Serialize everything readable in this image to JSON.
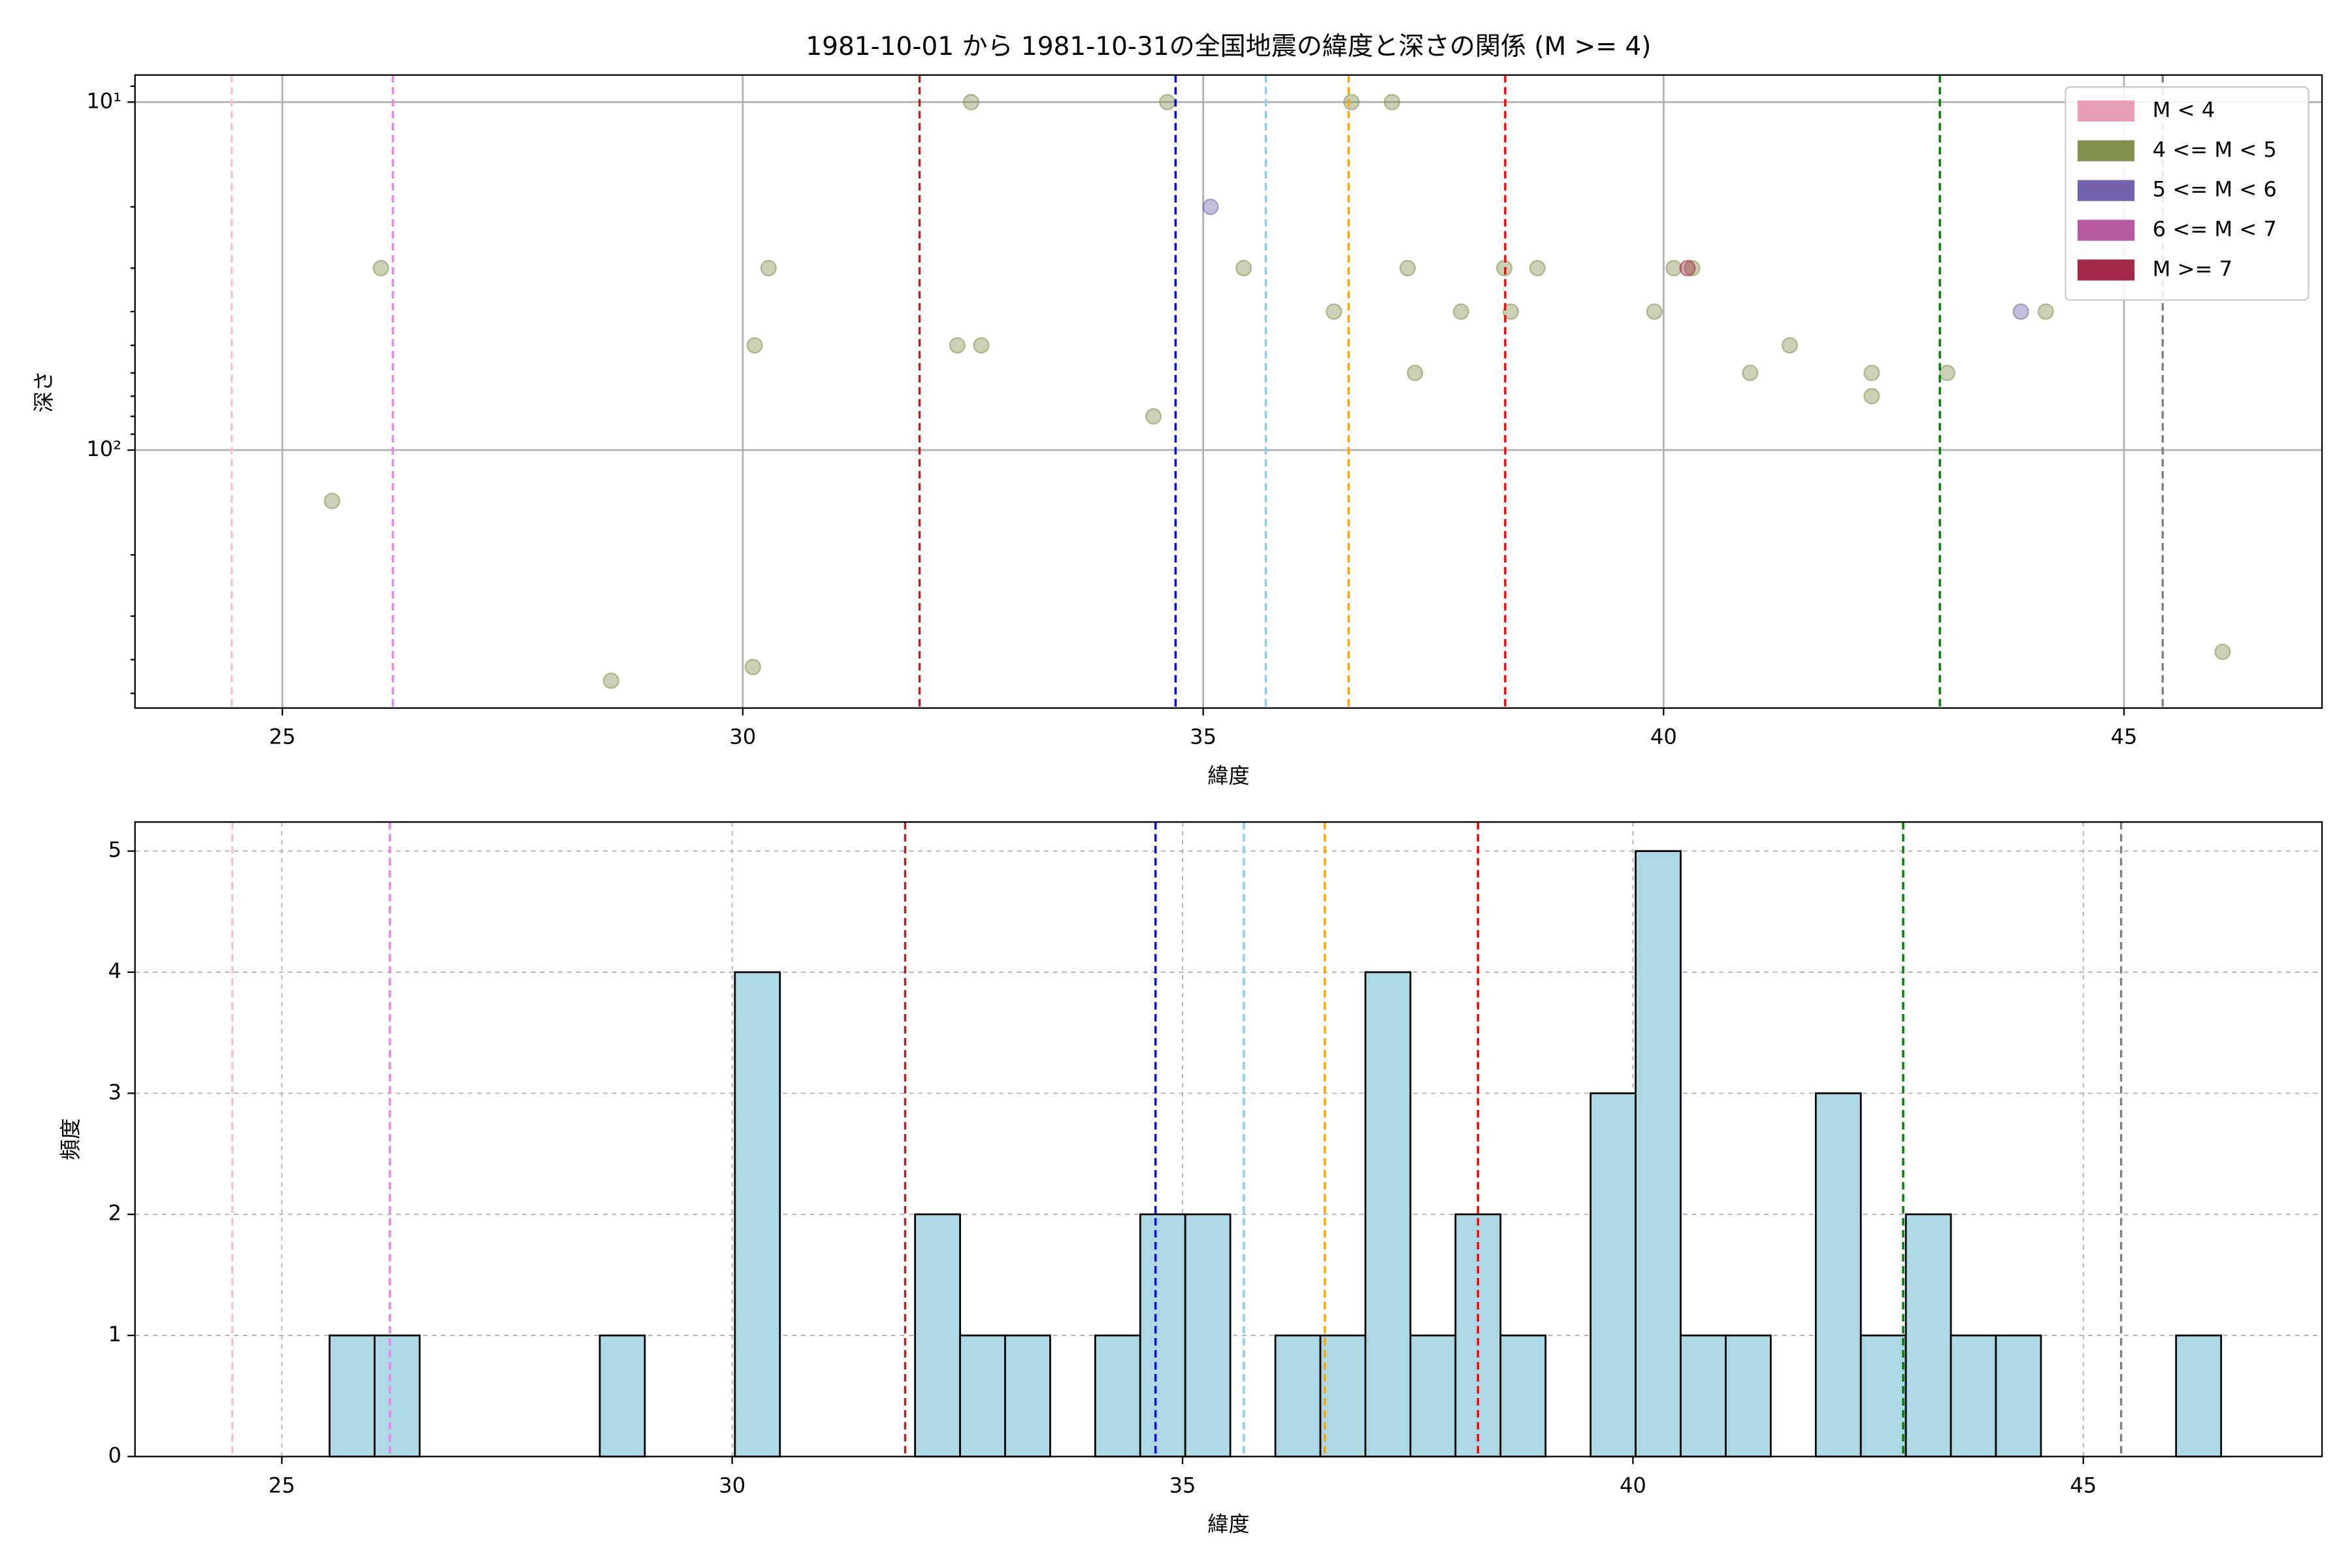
{
  "chart_data": [
    {
      "type": "scatter",
      "title": "1981-10-01 から 1981-10-31の全国地震の緯度と深さの関係 (M >= 4)",
      "xlabel": "緯度",
      "ylabel": "深さ",
      "xlim": [
        23.4,
        47.15
      ],
      "xticks": [
        25,
        30,
        35,
        40,
        45
      ],
      "yscale": "log",
      "ylim": [
        551,
        8.36
      ],
      "yticks": [
        {
          "value": 10,
          "label": "10¹"
        },
        {
          "value": 100,
          "label": "10²"
        }
      ],
      "yminorticks": [
        9,
        20,
        30,
        40,
        50,
        60,
        70,
        80,
        90,
        200,
        300,
        400,
        500
      ],
      "grid": true,
      "legend": "upper right",
      "series": [
        {
          "name": "M < 4",
          "color": "#e899b5",
          "x": [],
          "values": []
        },
        {
          "name": "4 <= M < 5",
          "color": "#7a8c45",
          "x": [
            25.54,
            26.07,
            28.57,
            30.11,
            30.13,
            30.28,
            32.33,
            32.48,
            32.59,
            34.46,
            34.61,
            35.44,
            36.42,
            36.61,
            37.05,
            37.22,
            37.3,
            37.8,
            38.27,
            38.34,
            38.63,
            39.9,
            40.11,
            40.31,
            40.94,
            41.37,
            42.26,
            42.26,
            43.08,
            44.15,
            46.07
          ],
          "values": [
            140,
            30,
            460,
            420,
            50,
            30,
            50,
            10,
            50,
            80,
            10,
            30,
            40,
            10,
            10,
            30,
            60,
            40,
            30,
            40,
            30,
            40,
            30,
            30,
            60,
            50,
            60,
            70,
            60,
            40,
            380
          ]
        },
        {
          "name": "5 <= M < 6",
          "color": "#6e5aa8",
          "x": [
            35.08,
            43.88
          ],
          "values": [
            20,
            40
          ]
        },
        {
          "name": "6 <= M < 7",
          "color": "#b34f9e",
          "x": [],
          "values": []
        },
        {
          "name": "M >= 7",
          "color": "#9e1b3c",
          "x": [
            40.26
          ],
          "values": [
            30
          ]
        }
      ],
      "vlines": [
        {
          "value": 24.45,
          "color": "pink"
        },
        {
          "value": 26.2,
          "color": "violet"
        },
        {
          "value": 31.92,
          "color": "firebrick"
        },
        {
          "value": 34.7,
          "color": "blue"
        },
        {
          "value": 35.68,
          "color": "skyblue"
        },
        {
          "value": 36.58,
          "color": "orange"
        },
        {
          "value": 38.28,
          "color": "red"
        },
        {
          "value": 43.0,
          "color": "green"
        },
        {
          "value": 45.42,
          "color": "gray"
        }
      ]
    },
    {
      "type": "histogram",
      "xlabel": "緯度",
      "ylabel": "頻度",
      "color": "lightblue",
      "edgecolor": "#000000",
      "xlim": [
        23.37,
        47.65
      ],
      "xticks": [
        25,
        30,
        35,
        40,
        45
      ],
      "ylim": [
        0,
        5.24
      ],
      "yticks": [
        0,
        1,
        2,
        3,
        4,
        5
      ],
      "grid": true,
      "bins": [
        25.53,
        26.03,
        26.53,
        27.03,
        27.53,
        28.03,
        28.53,
        29.03,
        29.53,
        30.03,
        30.53,
        31.03,
        31.53,
        32.03,
        32.53,
        33.03,
        33.53,
        34.03,
        34.53,
        35.03,
        35.53,
        36.03,
        36.53,
        37.03,
        37.53,
        38.03,
        38.53,
        39.03,
        39.53,
        40.03,
        40.53,
        41.03,
        41.53,
        42.03,
        42.53,
        43.03,
        43.53,
        44.03,
        44.53,
        45.03,
        45.53,
        46.03,
        46.53
      ],
      "counts": [
        1,
        1,
        0,
        0,
        0,
        0,
        1,
        0,
        0,
        4,
        0,
        0,
        0,
        2,
        1,
        1,
        0,
        1,
        2,
        2,
        0,
        1,
        1,
        4,
        1,
        2,
        1,
        0,
        3,
        5,
        1,
        1,
        0,
        3,
        1,
        2,
        1,
        1,
        0,
        0,
        0,
        1
      ],
      "vlines": [
        {
          "value": 24.45,
          "color": "pink"
        },
        {
          "value": 26.2,
          "color": "violet"
        },
        {
          "value": 31.92,
          "color": "firebrick"
        },
        {
          "value": 34.7,
          "color": "blue"
        },
        {
          "value": 35.68,
          "color": "skyblue"
        },
        {
          "value": 36.58,
          "color": "orange"
        },
        {
          "value": 38.28,
          "color": "red"
        },
        {
          "value": 43.0,
          "color": "green"
        },
        {
          "value": 45.42,
          "color": "gray"
        }
      ]
    }
  ]
}
